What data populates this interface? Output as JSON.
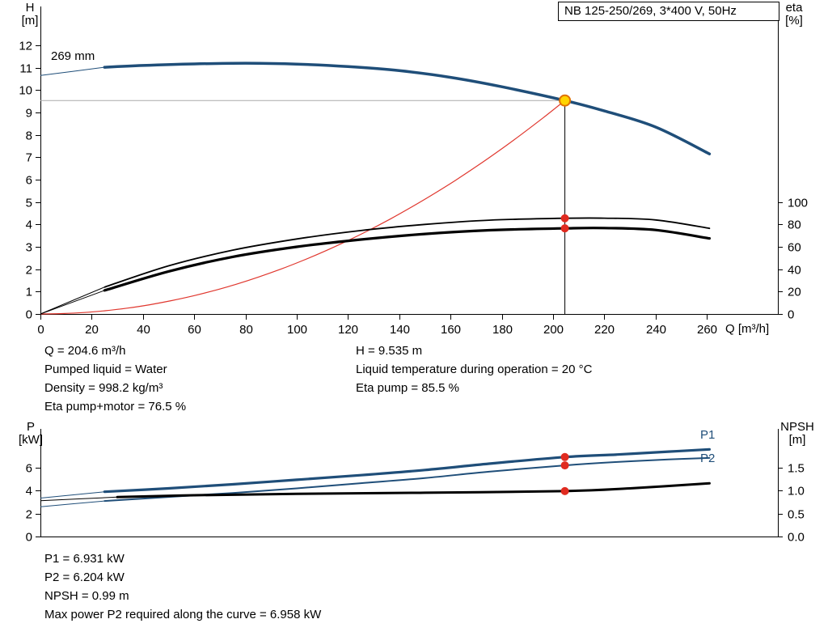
{
  "title_box": {
    "text": "NB 125-250/269, 3*400 V, 50Hz"
  },
  "colors": {
    "curve_blue": "#1f4e79",
    "curve_black": "#000000",
    "system_red": "#e0372e",
    "duty_dot_red": "#e02b20",
    "duty_yellow_fill": "#ffd400",
    "duty_yellow_ring": "#e07000",
    "ref_gray": "#aaaaaa"
  },
  "chart_data": [
    {
      "type": "line",
      "title": "NB 125-250/269, 3*400 V, 50Hz",
      "impeller_label": "269 mm",
      "x_axis": {
        "title": "Q [m³/h]",
        "min": 0,
        "max": 288,
        "ticks": [
          0,
          20,
          40,
          60,
          80,
          100,
          120,
          140,
          160,
          180,
          200,
          220,
          240,
          260
        ]
      },
      "y_left_axis": {
        "title1": "H",
        "title2": "[m]",
        "min": 0,
        "max": 13.7,
        "ticks": [
          0,
          1,
          2,
          3,
          4,
          5,
          6,
          7,
          8,
          9,
          10,
          11,
          12
        ]
      },
      "y_right_axis": {
        "title1": "eta",
        "title2": "[%]",
        "ticks": [
          0,
          20,
          40,
          60,
          80,
          100
        ],
        "note": "eta 100 % aligns with H = 5 m"
      },
      "series": [
        {
          "name": "head_269mm",
          "axis": "left",
          "color": "#1f4e79",
          "width": 3.5,
          "thick_from": 25,
          "points": [
            [
              0,
              10.65
            ],
            [
              25,
              11.02
            ],
            [
              40,
              11.1
            ],
            [
              60,
              11.17
            ],
            [
              80,
              11.2
            ],
            [
              100,
              11.16
            ],
            [
              120,
              11.05
            ],
            [
              140,
              10.87
            ],
            [
              160,
              10.57
            ],
            [
              180,
              10.15
            ],
            [
              204.6,
              9.535
            ],
            [
              220,
              9.07
            ],
            [
              240,
              8.35
            ],
            [
              261,
              7.15
            ]
          ]
        },
        {
          "name": "eta_pump",
          "axis": "right",
          "color": "#000000",
          "width": 1.8,
          "thick_from": 25,
          "points": [
            [
              0,
              0
            ],
            [
              25,
              24
            ],
            [
              50,
              43
            ],
            [
              75,
              57
            ],
            [
              100,
              67
            ],
            [
              125,
              74.5
            ],
            [
              150,
              80
            ],
            [
              175,
              83.8
            ],
            [
              204.6,
              85.5
            ],
            [
              220,
              85.6
            ],
            [
              240,
              84
            ],
            [
              261,
              76.5
            ]
          ]
        },
        {
          "name": "eta_pump_motor",
          "axis": "right",
          "color": "#000000",
          "width": 3.2,
          "thick_from": 25,
          "points": [
            [
              0,
              0
            ],
            [
              25,
              21
            ],
            [
              50,
              38
            ],
            [
              75,
              51
            ],
            [
              100,
              60
            ],
            [
              125,
              66.5
            ],
            [
              150,
              71.5
            ],
            [
              175,
              74.8
            ],
            [
              204.6,
              76.5
            ],
            [
              220,
              76.8
            ],
            [
              240,
              75
            ],
            [
              261,
              67.5
            ]
          ]
        }
      ],
      "system_curve": {
        "shape": "quadratic_through_origin",
        "to_duty_point": true
      },
      "duty_point": {
        "Q": 204.6,
        "H": 9.535,
        "eta_pump": 85.5,
        "eta_pump_motor": 76.5
      }
    },
    {
      "type": "line",
      "x_axis": {
        "min": 0,
        "max": 288,
        "ticks": []
      },
      "y_left_axis": {
        "title1": "P",
        "title2": "[kW]",
        "min": 0,
        "max": 9.4,
        "ticks": [
          0,
          2,
          4,
          6
        ]
      },
      "y_right_axis": {
        "title1": "NPSH",
        "title2": "[m]",
        "ticks": [
          "0.0",
          "0.5",
          "1.0",
          "1.5"
        ]
      },
      "p1_label": "P1",
      "p2_label": "P2",
      "series": [
        {
          "name": "P1",
          "axis": "left",
          "color": "#1f4e79",
          "width": 3.2,
          "thick_from": 25,
          "points": [
            [
              0,
              3.35
            ],
            [
              25,
              3.9
            ],
            [
              50,
              4.2
            ],
            [
              75,
              4.55
            ],
            [
              100,
              4.95
            ],
            [
              125,
              5.35
            ],
            [
              150,
              5.8
            ],
            [
              175,
              6.35
            ],
            [
              204.6,
              6.931
            ],
            [
              225,
              7.15
            ],
            [
              245,
              7.4
            ],
            [
              261,
              7.6
            ]
          ]
        },
        {
          "name": "P2",
          "axis": "left",
          "color": "#1f4e79",
          "width": 2,
          "thick_from": 25,
          "points": [
            [
              0,
              2.6
            ],
            [
              25,
              3.1
            ],
            [
              50,
              3.45
            ],
            [
              75,
              3.8
            ],
            [
              100,
              4.2
            ],
            [
              125,
              4.65
            ],
            [
              150,
              5.1
            ],
            [
              175,
              5.65
            ],
            [
              204.6,
              6.204
            ],
            [
              225,
              6.5
            ],
            [
              245,
              6.72
            ],
            [
              261,
              6.85
            ]
          ]
        },
        {
          "name": "NPSH",
          "axis": "right",
          "color": "#000000",
          "width": 3,
          "thick_from": 25,
          "points": [
            [
              0,
              0.78
            ],
            [
              30,
              0.86
            ],
            [
              60,
              0.9
            ],
            [
              100,
              0.93
            ],
            [
              150,
              0.955
            ],
            [
              204.6,
              0.99
            ],
            [
              230,
              1.05
            ],
            [
              261,
              1.16
            ]
          ]
        }
      ],
      "duty_point": {
        "Q": 204.6,
        "P1": 6.931,
        "P2": 6.204,
        "NPSH": 0.99
      }
    }
  ],
  "info_mid_left": [
    "Q = 204.6 m³/h",
    "Pumped liquid = Water",
    "Density = 998.2 kg/m³",
    "Eta pump+motor = 76.5 %"
  ],
  "info_mid_right": [
    "H = 9.535 m",
    "Liquid temperature during operation = 20 °C",
    "Eta pump = 85.5 %"
  ],
  "info_bottom": [
    "P1 = 6.931 kW",
    "P2 = 6.204 kW",
    "NPSH = 0.99 m",
    "Max power P2 required along the curve = 6.958 kW"
  ]
}
